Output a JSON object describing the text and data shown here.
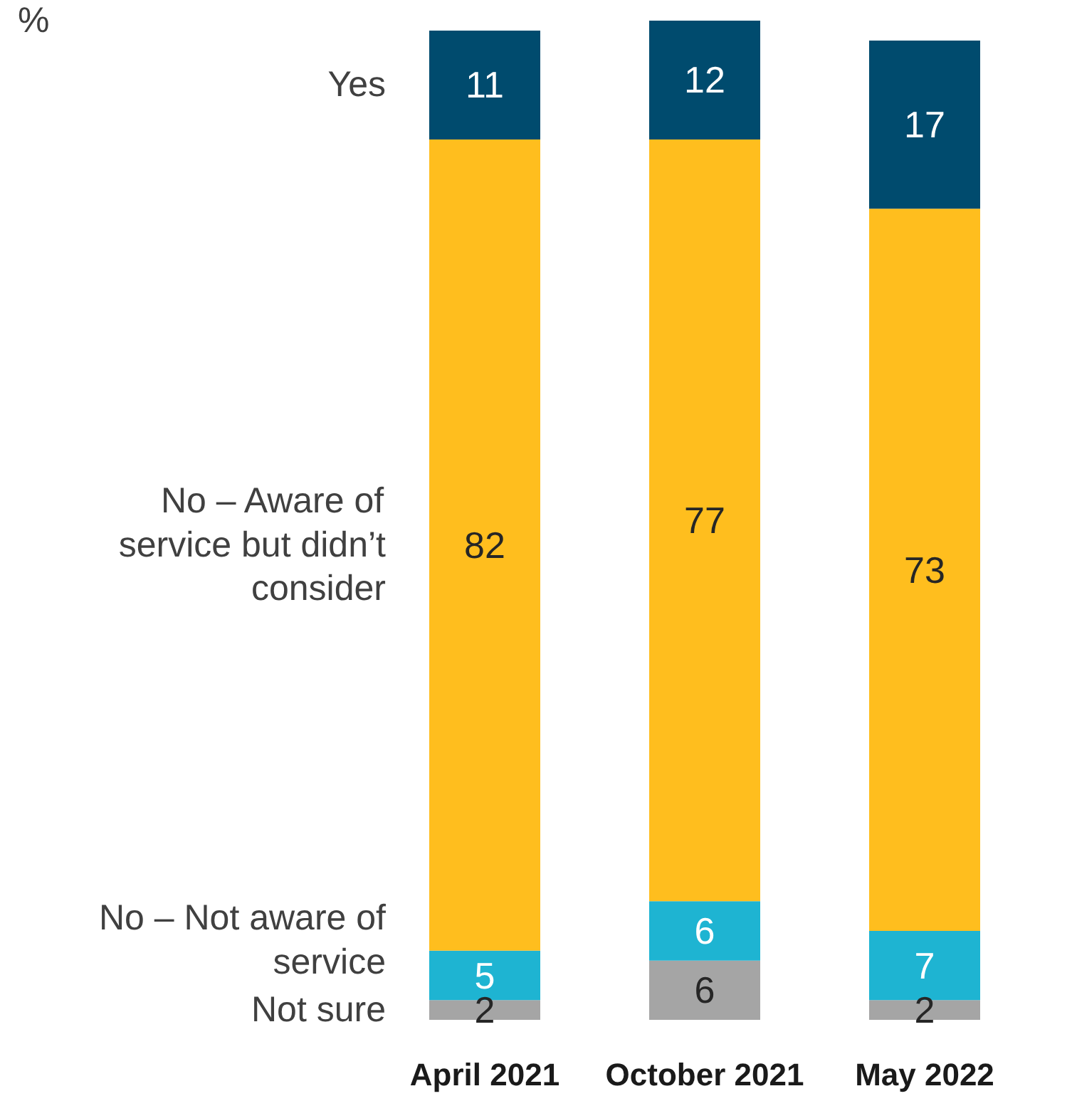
{
  "chart_data": {
    "type": "bar",
    "stacked": true,
    "annotations": [
      "%"
    ],
    "categories": [
      "April 2021",
      "October 2021",
      "May 2022"
    ],
    "series": [
      {
        "name": "Not sure",
        "color": "#a5a5a5",
        "values": [
          2,
          6,
          2
        ]
      },
      {
        "name": "No – Not aware of service",
        "color": "#1eb4d2",
        "values": [
          5,
          6,
          7
        ]
      },
      {
        "name": "No – Aware of service but didn’t consider",
        "color": "#ffbe1e",
        "values": [
          82,
          77,
          73
        ]
      },
      {
        "name": "Yes",
        "color": "#004b6e",
        "values": [
          11,
          12,
          17
        ]
      }
    ],
    "data_labels": true,
    "legend": false,
    "grid": false
  }
}
